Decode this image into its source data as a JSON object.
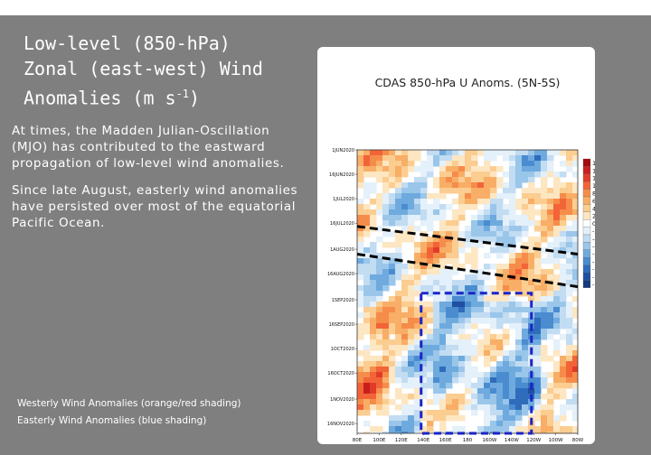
{
  "slide": {
    "title_lines": [
      "Low-level (850-hPa)",
      "Zonal (east-west) Wind",
      "Anomalies (m s"
    ],
    "title_sup": "-1",
    "title_close": ")",
    "paragraph1": "At times, the Madden Julian-Oscillation (MJO) has contributed to the eastward propagation of low-level wind anomalies.",
    "paragraph2": "Since late August, easterly wind anomalies have persisted over most of the equatorial Pacific Ocean.",
    "legend_westerly": "Westerly Wind Anomalies (orange/red shading)",
    "legend_easterly": "Easterly Wind Anomalies (blue shading)"
  },
  "colors": {
    "panel_background": "#7f7f7f",
    "text": "#ffffff",
    "annotation_dashed_lines": "#000000",
    "annotation_box": "#1a24c8"
  },
  "chart_data": {
    "type": "heatmap",
    "title": "CDAS 850-hPa U Anoms. (5N-5S)",
    "x_ticks": [
      "80E",
      "100E",
      "120E",
      "140E",
      "160E",
      "180",
      "160W",
      "140W",
      "120W",
      "100W",
      "80W"
    ],
    "x_range_lon_east": [
      80,
      280
    ],
    "y_ticks": [
      "1JUN2020",
      "16JUN2020",
      "1JUL2020",
      "16JUL2020",
      "1AUG2020",
      "16AUG2020",
      "1SEP2020",
      "16SEP2020",
      "1OCT2020",
      "16OCT2020",
      "1NOV2020",
      "16NOV2020"
    ],
    "y_range": [
      "1JUN2020",
      "22NOV2020"
    ],
    "colorbar_ticks": [
      "16",
      "14",
      "12",
      "10",
      "8",
      "6",
      "4",
      "2",
      "0",
      "-2",
      "-4",
      "-6",
      "-8",
      "-10",
      "-12",
      "-14",
      "-16"
    ],
    "colorbar_colors": [
      "#a30a0a",
      "#c81e1e",
      "#e23a28",
      "#f26438",
      "#f68c4a",
      "#f8ae66",
      "#fbcd90",
      "#fde6c2",
      "#ffffff",
      "#e4f0fa",
      "#c2dcf2",
      "#9ac6ea",
      "#6eaade",
      "#4a8ccf",
      "#2f6cbb",
      "#1e4fa0",
      "#143a80"
    ],
    "annotations": [
      {
        "kind": "dashed-line",
        "from": {
          "lon": 80,
          "date": "18JUL2020"
        },
        "to": {
          "lon": 280,
          "date": "4AUG2020"
        }
      },
      {
        "kind": "dashed-line",
        "from": {
          "lon": 80,
          "date": "4AUG2020"
        },
        "to": {
          "lon": 280,
          "date": "24AUG2020"
        }
      },
      {
        "kind": "box",
        "lon": [
          138,
          238
        ],
        "dates": [
          "28AUG2020",
          "22NOV2020"
        ]
      }
    ]
  }
}
